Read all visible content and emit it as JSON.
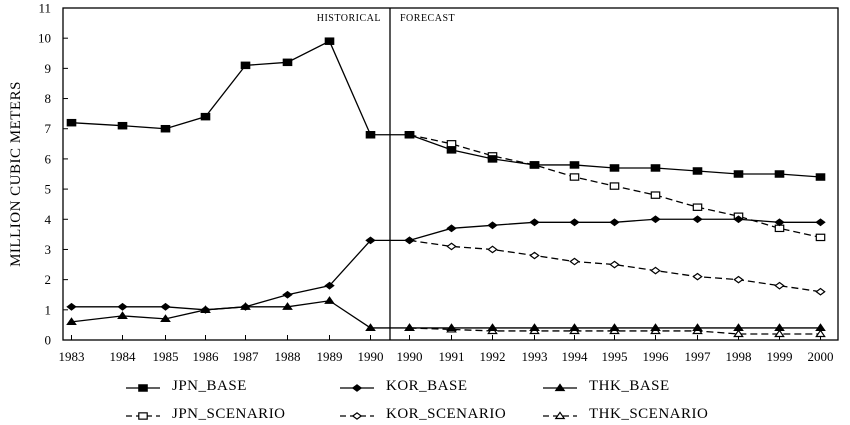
{
  "chart_data": {
    "type": "line",
    "ylabel": "MILLION CUBIC METERS",
    "ylim": [
      0,
      11
    ],
    "yticks": [
      0,
      1,
      2,
      3,
      4,
      5,
      6,
      7,
      8,
      9,
      10,
      11
    ],
    "grid": false,
    "legend_position": "bottom",
    "regions": {
      "historical": "HISTORICAL",
      "forecast": "FORECAST"
    },
    "x": [
      "1983",
      "1984",
      "1985",
      "1986",
      "1987",
      "1988",
      "1989",
      "1990",
      "1990",
      "1991",
      "1992",
      "1993",
      "1994",
      "1995",
      "1996",
      "1997",
      "1998",
      "1999",
      "2000"
    ],
    "series": [
      {
        "name": "JPN_BASE",
        "marker": "filled-square",
        "dash": "solid",
        "values": [
          7.2,
          7.1,
          7.0,
          7.4,
          9.1,
          9.2,
          9.9,
          6.8,
          6.8,
          6.3,
          6.0,
          5.8,
          5.8,
          5.7,
          5.7,
          5.6,
          5.5,
          5.5,
          5.4
        ]
      },
      {
        "name": "KOR_BASE",
        "marker": "filled-diamond",
        "dash": "solid",
        "values": [
          1.1,
          1.1,
          1.1,
          1.0,
          1.1,
          1.5,
          1.8,
          3.3,
          3.3,
          3.7,
          3.8,
          3.9,
          3.9,
          3.9,
          4.0,
          4.0,
          4.0,
          3.9,
          3.9
        ]
      },
      {
        "name": "THK_BASE",
        "marker": "filled-triangle",
        "dash": "solid",
        "values": [
          0.6,
          0.8,
          0.7,
          1.0,
          1.1,
          1.1,
          1.3,
          0.4,
          0.4,
          0.4,
          0.4,
          0.4,
          0.4,
          0.4,
          0.4,
          0.4,
          0.4,
          0.4,
          0.4
        ]
      },
      {
        "name": "JPN_SCENARIO",
        "marker": "open-square",
        "dash": "dashed",
        "values": [
          null,
          null,
          null,
          null,
          null,
          null,
          null,
          null,
          6.8,
          6.5,
          6.1,
          5.8,
          5.4,
          5.1,
          4.8,
          4.4,
          4.1,
          3.7,
          3.4
        ]
      },
      {
        "name": "KOR_SCENARIO",
        "marker": "open-diamond",
        "dash": "dashed",
        "values": [
          null,
          null,
          null,
          null,
          null,
          null,
          null,
          null,
          3.3,
          3.1,
          3.0,
          2.8,
          2.6,
          2.5,
          2.3,
          2.1,
          2.0,
          1.8,
          1.6
        ]
      },
      {
        "name": "THK_SCENARIO",
        "marker": "open-triangle",
        "dash": "dashed",
        "values": [
          null,
          null,
          null,
          null,
          null,
          null,
          null,
          null,
          0.4,
          0.35,
          0.3,
          0.3,
          0.3,
          0.3,
          0.3,
          0.3,
          0.2,
          0.2,
          0.2
        ]
      }
    ]
  }
}
